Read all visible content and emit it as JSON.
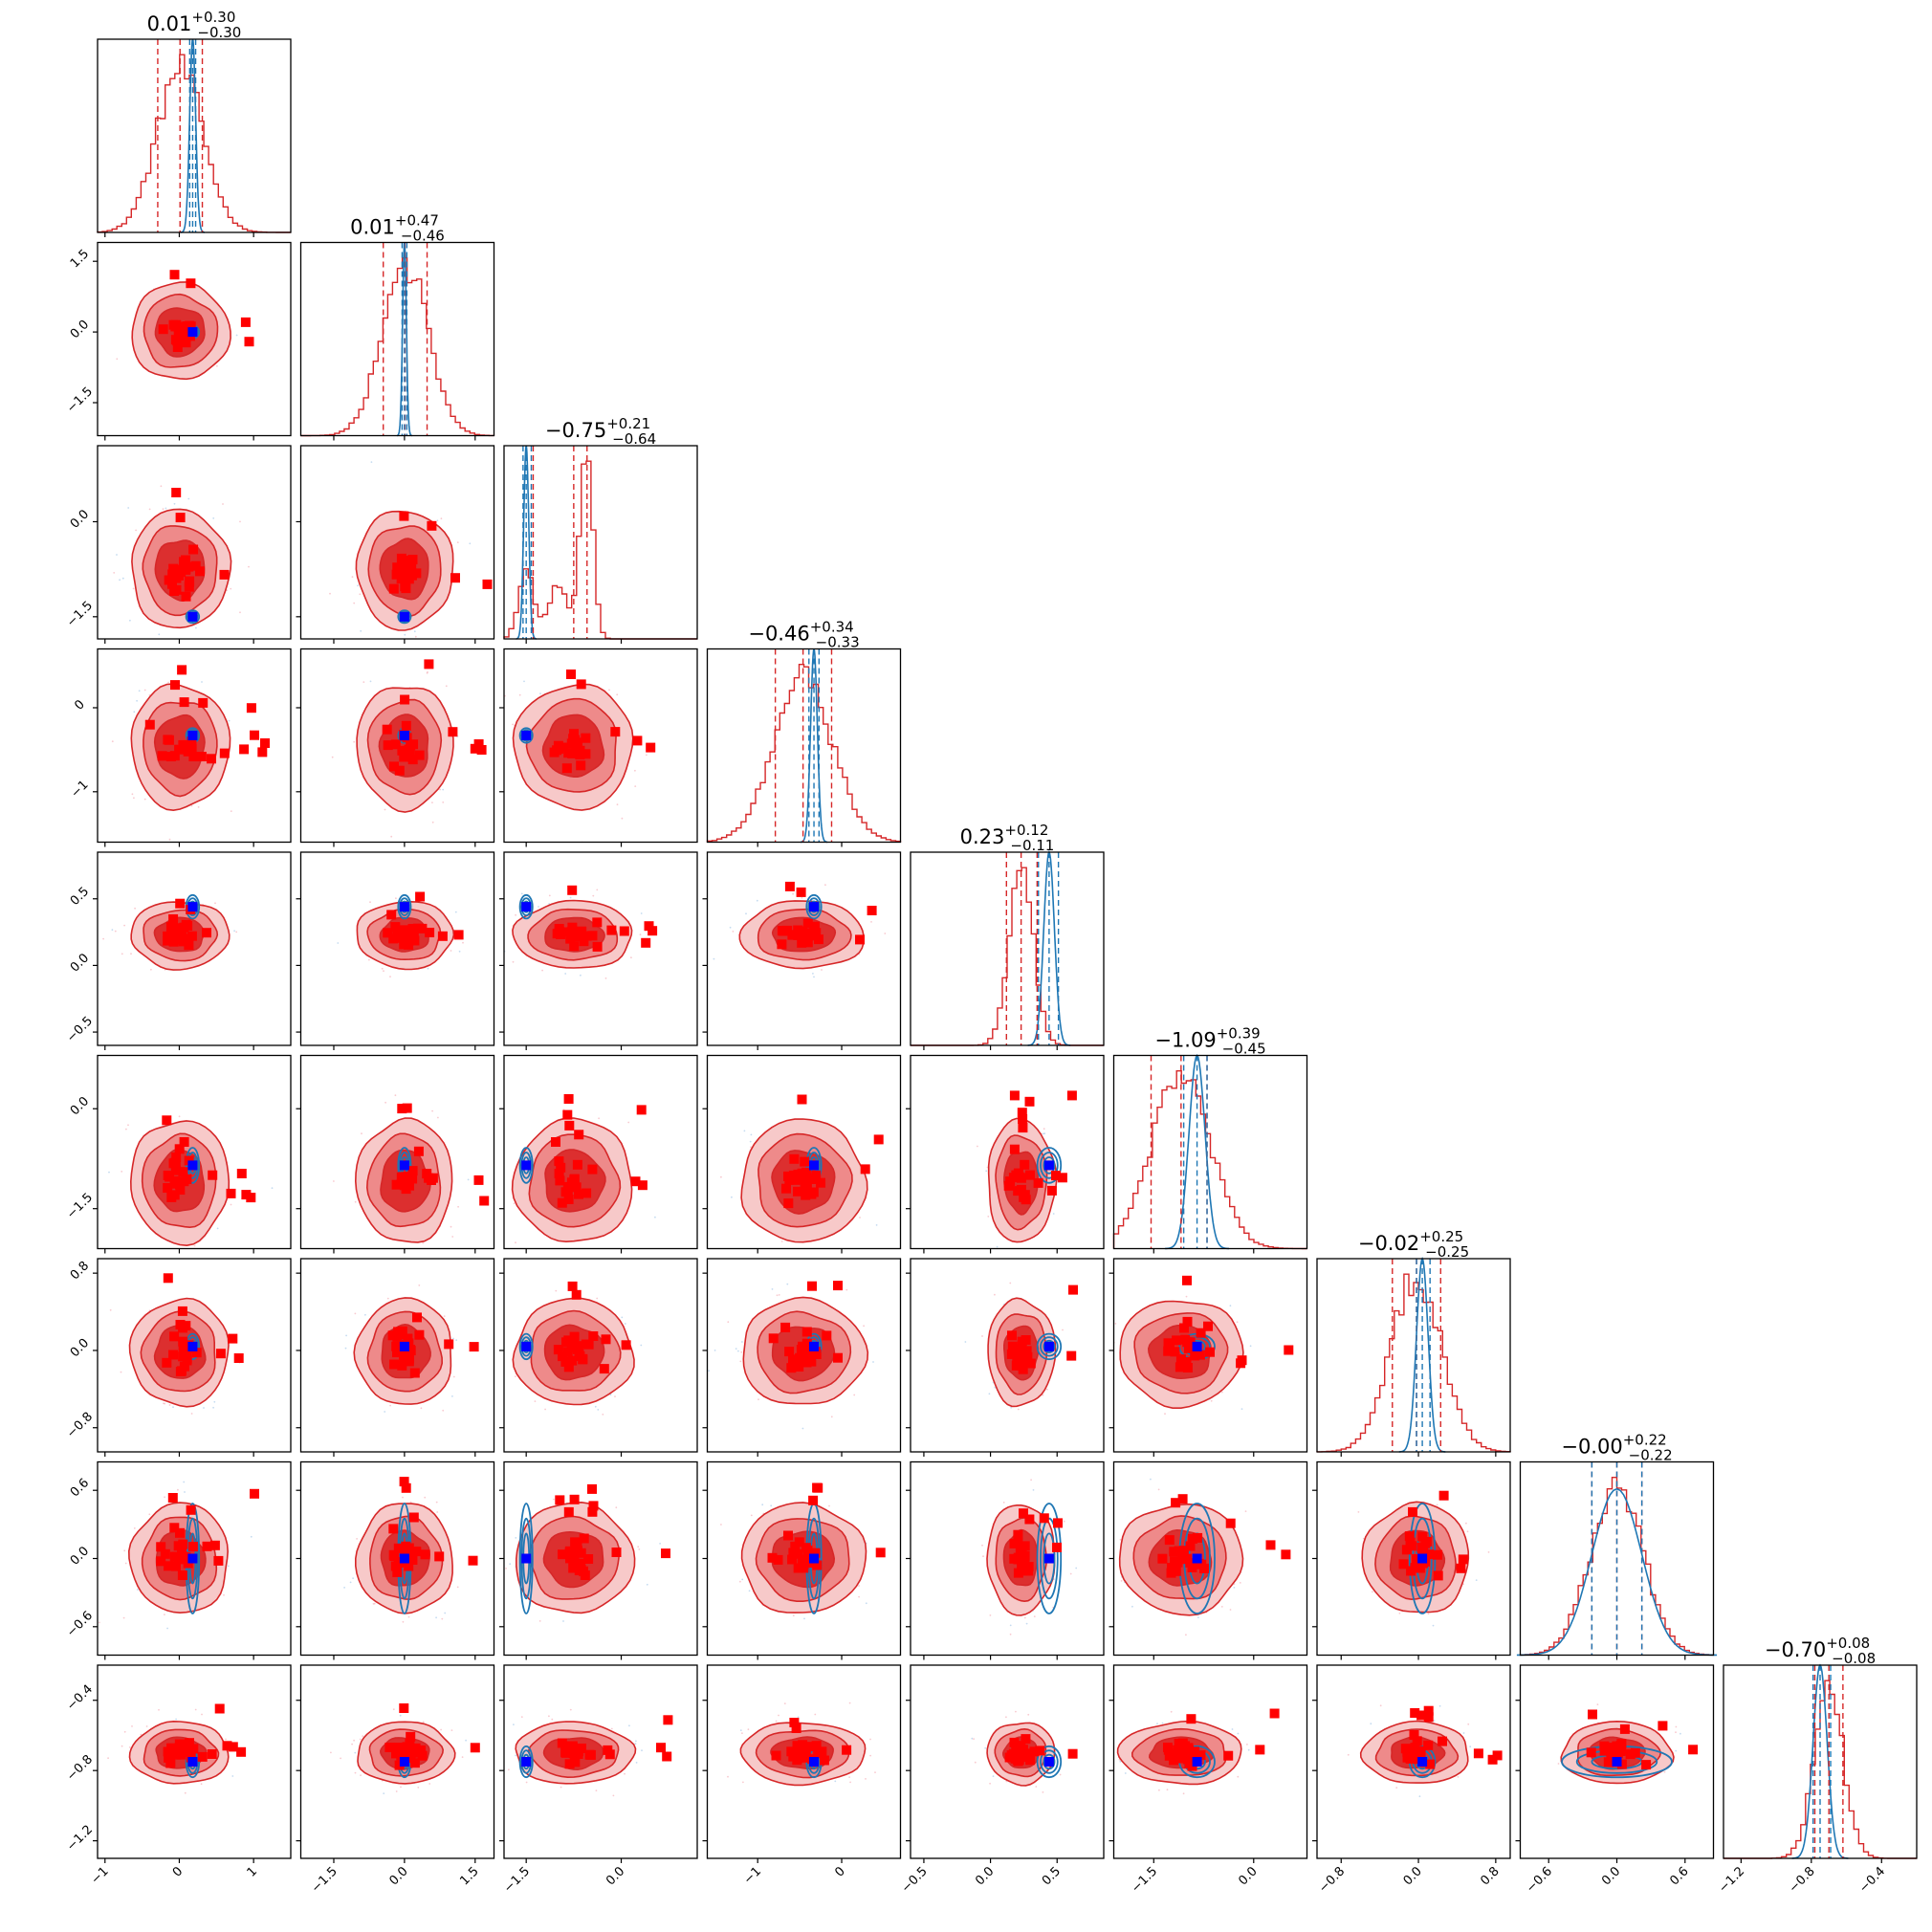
{
  "chart_data": {
    "type": "corner",
    "n_params": 9,
    "colors": {
      "posterior_a": "#d62728",
      "posterior_b": "#1f77b4",
      "marker_a": "#ff0000",
      "marker_b": "#0000ff",
      "fill_levels": [
        "#f7c9c9",
        "#ee8a8a",
        "#dc2f2f"
      ]
    },
    "params": [
      {
        "title_main": "0.01",
        "title_plus": "+0.30",
        "title_minus": "−0.30",
        "median": 0.01,
        "err_plus": 0.3,
        "err_minus": 0.3,
        "range": [
          -1.1,
          1.5
        ],
        "ticks": [
          -1,
          0,
          1
        ],
        "tick_labels": [
          "−1",
          "0",
          "1"
        ],
        "truth": 0.18,
        "blue_center": 0.18,
        "blue_sigma": 0.04,
        "blue_q": [
          0.14,
          0.18,
          0.22
        ]
      },
      {
        "title_main": "0.01",
        "title_plus": "+0.47",
        "title_minus": "−0.46",
        "median": 0.01,
        "err_plus": 0.47,
        "err_minus": 0.46,
        "range": [
          -2.2,
          1.9
        ],
        "ticks": [
          -1.5,
          0.0,
          1.5
        ],
        "tick_labels": [
          "−1.5",
          "0.0",
          "1.5"
        ],
        "truth": 0.0,
        "blue_center": 0.0,
        "blue_sigma": 0.04,
        "blue_q": [
          -0.05,
          0.0,
          0.05
        ]
      },
      {
        "title_main": "−0.75",
        "title_plus": "+0.21",
        "title_minus": "−0.64",
        "median": -0.75,
        "err_plus": 0.21,
        "err_minus": 0.64,
        "range": [
          -1.85,
          1.2
        ],
        "ticks": [
          -1.5,
          0.0
        ],
        "tick_labels": [
          "−1.5",
          "0.0"
        ],
        "truth": -1.5,
        "blue_center": -1.5,
        "blue_sigma": 0.04,
        "blue_q": [
          -1.55,
          -1.5,
          -1.42
        ]
      },
      {
        "title_main": "−0.46",
        "title_plus": "+0.34",
        "title_minus": "−0.33",
        "median": -0.46,
        "err_plus": 0.34,
        "err_minus": 0.33,
        "range": [
          -1.6,
          0.7
        ],
        "ticks": [
          -1,
          0
        ],
        "tick_labels": [
          "−1",
          "0"
        ],
        "truth": -0.33,
        "blue_center": -0.33,
        "blue_sigma": 0.04,
        "blue_q": [
          -0.39,
          -0.33,
          -0.27
        ]
      },
      {
        "title_main": "0.23",
        "title_plus": "+0.12",
        "title_minus": "−0.11",
        "median": 0.23,
        "err_plus": 0.12,
        "err_minus": 0.11,
        "range": [
          -0.6,
          0.85
        ],
        "ticks": [
          -0.5,
          0.0,
          0.5
        ],
        "tick_labels": [
          "−0.5",
          "0.0",
          "0.5"
        ],
        "truth": 0.44,
        "blue_center": 0.44,
        "blue_sigma": 0.04,
        "blue_q": [
          0.36,
          0.44,
          0.51
        ]
      },
      {
        "title_main": "−1.09",
        "title_plus": "+0.39",
        "title_minus": "−0.45",
        "median": -1.09,
        "err_plus": 0.39,
        "err_minus": 0.45,
        "range": [
          -2.1,
          0.8
        ],
        "ticks": [
          -1.5,
          0.0
        ],
        "tick_labels": [
          "−1.5",
          "0.0"
        ],
        "truth": -0.85,
        "blue_center": -0.85,
        "blue_sigma": 0.12,
        "blue_q": [
          -1.05,
          -0.85,
          -0.7
        ]
      },
      {
        "title_main": "−0.02",
        "title_plus": "+0.25",
        "title_minus": "−0.25",
        "median": -0.02,
        "err_plus": 0.25,
        "err_minus": 0.25,
        "range": [
          -1.05,
          0.95
        ],
        "ticks": [
          -0.8,
          0.0,
          0.8
        ],
        "tick_labels": [
          "−0.8",
          "0.0",
          "0.8"
        ],
        "truth": 0.04,
        "blue_center": 0.04,
        "blue_sigma": 0.06,
        "blue_q": [
          -0.02,
          0.04,
          0.12
        ]
      },
      {
        "title_main": "−0.00",
        "title_plus": "+0.22",
        "title_minus": "−0.22",
        "median": -0.0,
        "err_plus": 0.22,
        "err_minus": 0.22,
        "range": [
          -0.85,
          0.85
        ],
        "ticks": [
          -0.6,
          0.0,
          0.6
        ],
        "tick_labels": [
          "−0.6",
          "0.0",
          "0.6"
        ],
        "truth": 0.0,
        "blue_center": 0.0,
        "blue_sigma": 0.22,
        "blue_q": [
          -0.22,
          0.0,
          0.22
        ]
      },
      {
        "title_main": "−0.70",
        "title_plus": "+0.08",
        "title_minus": "−0.08",
        "median": -0.7,
        "err_plus": 0.08,
        "err_minus": 0.08,
        "range": [
          -1.3,
          -0.2
        ],
        "ticks": [
          -1.2,
          -0.8,
          -0.4
        ],
        "tick_labels": [
          "−1.2",
          "−0.8",
          "−0.4"
        ],
        "truth": -0.75,
        "blue_center": -0.75,
        "blue_sigma": 0.04,
        "blue_q": [
          -0.79,
          -0.75,
          -0.69
        ]
      }
    ]
  }
}
